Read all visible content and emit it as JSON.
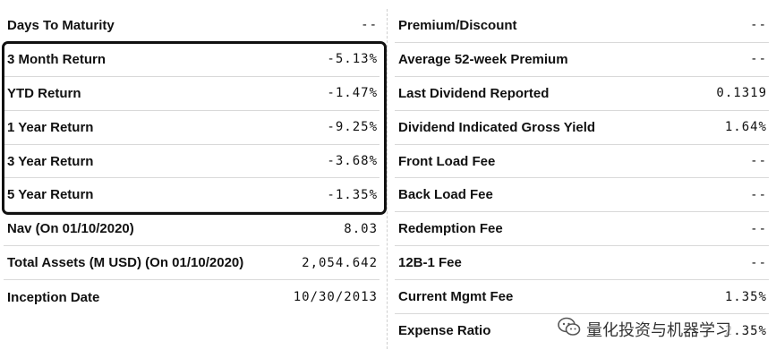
{
  "left_rows": [
    {
      "label": "Days To Maturity",
      "value": "--"
    },
    {
      "label": "3 Month Return",
      "value": "-5.13%"
    },
    {
      "label": "YTD Return",
      "value": "-1.47%"
    },
    {
      "label": "1 Year Return",
      "value": "-9.25%"
    },
    {
      "label": "3 Year Return",
      "value": "-3.68%"
    },
    {
      "label": "5 Year Return",
      "value": "-1.35%"
    },
    {
      "label": "Nav (On 01/10/2020)",
      "value": "8.03"
    },
    {
      "label": "Total Assets (M USD) (On 01/10/2020)",
      "value": "2,054.642"
    },
    {
      "label": "Inception Date",
      "value": "10/30/2013"
    }
  ],
  "right_rows": [
    {
      "label": "Premium/Discount",
      "value": "--"
    },
    {
      "label": "Average 52-week Premium",
      "value": "--"
    },
    {
      "label": "Last Dividend Reported",
      "value": "0.1319"
    },
    {
      "label": "Dividend Indicated Gross Yield",
      "value": "1.64%"
    },
    {
      "label": "Front Load Fee",
      "value": "--"
    },
    {
      "label": "Back Load Fee",
      "value": "--"
    },
    {
      "label": "Redemption Fee",
      "value": "--"
    },
    {
      "label": "12B-1 Fee",
      "value": "--"
    },
    {
      "label": "Current Mgmt Fee",
      "value": "1.35%"
    },
    {
      "label": "Expense Ratio",
      "value": "2.35%"
    }
  ],
  "watermark": {
    "text": "量化投资与机器学习",
    "icon": "wechat-icon"
  }
}
